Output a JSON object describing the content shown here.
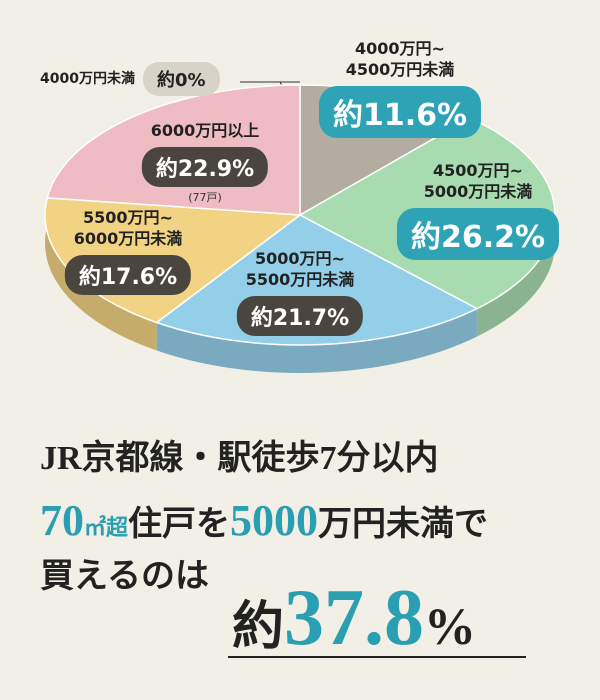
{
  "chart_data": {
    "type": "pie",
    "categories": [
      "4000万円未満",
      "4000万円~\n4500万円未満",
      "4500万円~\n5000万円未満",
      "5000万円~\n5500万円未満",
      "5500万円~\n6000万円未満",
      "6000万円以上"
    ],
    "values": [
      0,
      11.6,
      26.2,
      21.7,
      17.6,
      22.9
    ],
    "value_labels": [
      "約0%",
      "約11.6%",
      "約26.2%",
      "約21.7%",
      "約17.6%",
      "約22.9%"
    ],
    "colors": [
      "#b3ada1",
      "#b3ada1",
      "#a8dcb0",
      "#93cfe9",
      "#f2d283",
      "#f0bcc3"
    ],
    "badge_colors": [
      "#4b453f",
      "#2ea3b6",
      "#2ea3b6",
      "#4b453f",
      "#4b453f",
      "#4b453f"
    ],
    "annotation": "(77戸)"
  },
  "message": {
    "headline": "JR京都線・駅徒歩7分以内",
    "line1": [
      {
        "text": "70",
        "color": "#2a9fb2"
      },
      {
        "text": "㎡超",
        "color": "#2a9fb2"
      },
      {
        "text": "住戸を",
        "color": "#222"
      },
      {
        "text": "5000",
        "color": "#2a9fb2"
      },
      {
        "text": "万円未満で",
        "color": "#222"
      }
    ],
    "line2": "買えるのは",
    "result": {
      "prefix": "約",
      "value": "37.8",
      "suffix": "%"
    }
  }
}
